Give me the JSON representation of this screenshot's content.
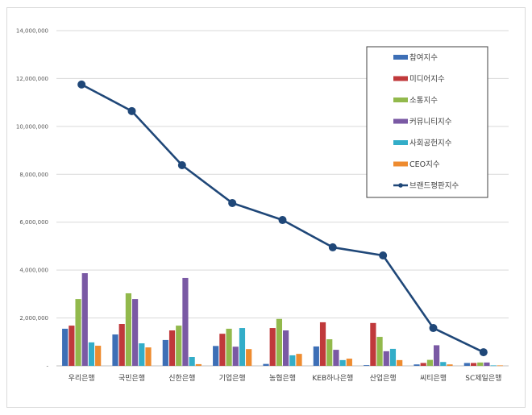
{
  "chart_data": {
    "type": "bar",
    "title": "",
    "xlabel": "",
    "ylabel": "",
    "ylim": [
      0,
      14000000
    ],
    "yticks": [
      0,
      2000000,
      4000000,
      6000000,
      8000000,
      10000000,
      12000000,
      14000000
    ],
    "ytick_labels": [
      "-",
      "2,000,000",
      "4,000,000",
      "6,000,000",
      "8,000,000",
      "10,000,000",
      "12,000,000",
      "14,000,000"
    ],
    "grid": true,
    "legend_position": "upper right (inside)",
    "categories": [
      "우리은행",
      "국민은행",
      "신한은행",
      "기업은행",
      "농협은행",
      "KEB하나은행",
      "산업은행",
      "씨티은행",
      "SC제일은행"
    ],
    "series": [
      {
        "name": "참여지수",
        "type": "bar",
        "color": "#3d6fb6",
        "values": [
          1550000,
          1310000,
          1080000,
          830000,
          80000,
          810000,
          30000,
          60000,
          120000
        ]
      },
      {
        "name": "미디어지수",
        "type": "bar",
        "color": "#c0393b",
        "values": [
          1680000,
          1750000,
          1480000,
          1340000,
          1580000,
          1820000,
          1790000,
          120000,
          120000
        ]
      },
      {
        "name": "소통지수",
        "type": "bar",
        "color": "#92b94c",
        "values": [
          2790000,
          3030000,
          1680000,
          1550000,
          1960000,
          1110000,
          1210000,
          250000,
          140000
        ]
      },
      {
        "name": "커뮤니티지수",
        "type": "bar",
        "color": "#7a59a4",
        "values": [
          3870000,
          2790000,
          3670000,
          800000,
          1480000,
          670000,
          610000,
          860000,
          140000
        ]
      },
      {
        "name": "사회공헌지수",
        "type": "bar",
        "color": "#33adc8",
        "values": [
          980000,
          940000,
          370000,
          1580000,
          440000,
          240000,
          710000,
          160000,
          20000
        ]
      },
      {
        "name": "CEO지수",
        "type": "bar",
        "color": "#ee8b2f",
        "values": [
          840000,
          770000,
          70000,
          700000,
          500000,
          300000,
          240000,
          60000,
          20000
        ]
      },
      {
        "name": "브랜드평판지수",
        "type": "line",
        "color": "#1f4778",
        "values": [
          11750000,
          10640000,
          8380000,
          6800000,
          6090000,
          4950000,
          4610000,
          1580000,
          570000
        ]
      }
    ]
  },
  "colors": {
    "grid": "#d9d9d9",
    "axis": "#bfbfbf",
    "frame": "#d9d9d9"
  }
}
